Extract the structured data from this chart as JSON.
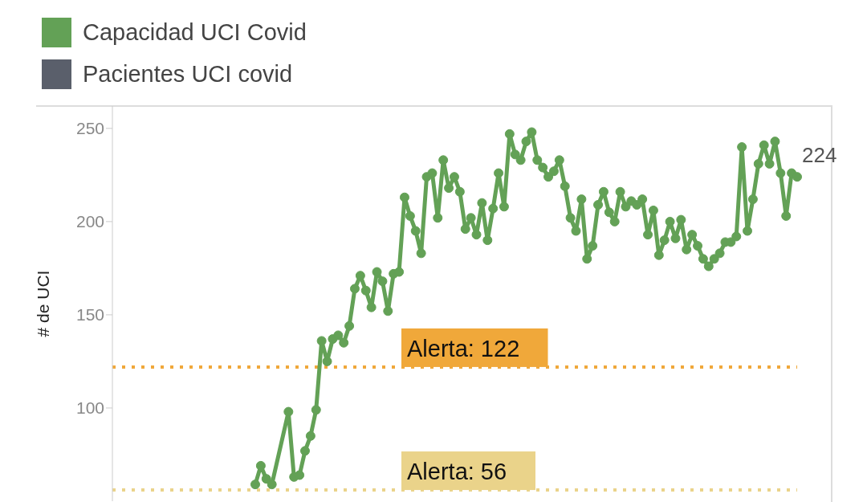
{
  "chart_data": {
    "type": "line",
    "ylabel": "# de UCI",
    "categories": [
      null,
      null,
      null,
      null,
      null,
      null,
      null,
      null,
      null,
      null,
      null,
      null,
      null,
      null,
      null,
      null,
      null,
      null,
      null,
      null,
      null,
      null,
      null,
      null,
      null,
      null,
      null,
      null,
      null,
      null,
      null,
      null,
      null,
      null,
      null,
      null,
      null,
      null,
      null,
      null,
      null,
      null,
      null,
      null,
      null,
      null,
      null,
      null,
      null,
      null,
      null,
      null,
      null,
      null,
      null,
      null,
      null,
      null,
      null,
      null,
      null,
      null,
      null,
      null,
      null,
      null,
      null,
      null,
      null,
      null,
      null,
      null,
      null,
      null,
      null,
      null,
      null,
      null,
      null,
      null,
      null,
      null,
      null,
      null,
      null,
      null,
      null,
      null,
      null,
      null,
      null,
      null,
      null,
      null,
      null,
      null,
      null,
      null,
      null
    ],
    "series": [
      {
        "name": "Capacidad UCI Covid",
        "color": "#63a156",
        "values": [
          59,
          69,
          62,
          59,
          null,
          null,
          98,
          63,
          64,
          77,
          85,
          99,
          136,
          125,
          137,
          139,
          135,
          144,
          164,
          171,
          163,
          154,
          173,
          168,
          152,
          172,
          173,
          213,
          203,
          195,
          183,
          224,
          226,
          202,
          233,
          218,
          224,
          216,
          196,
          202,
          193,
          210,
          190,
          207,
          226,
          208,
          247,
          236,
          233,
          243,
          248,
          233,
          229,
          224,
          227,
          233,
          219,
          202,
          195,
          212,
          180,
          187,
          209,
          216,
          205,
          200,
          216,
          208,
          211,
          209,
          212,
          193,
          206,
          182,
          190,
          200,
          191,
          201,
          185,
          193,
          187,
          180,
          176,
          180,
          183,
          189,
          189,
          192,
          240,
          195,
          212,
          231,
          241,
          231,
          243,
          226,
          203,
          226,
          224
        ],
        "value_labels": [
          null,
          null,
          null,
          null,
          null,
          null,
          null,
          null,
          null,
          null,
          null,
          null,
          null,
          null,
          null,
          null,
          null,
          null,
          null,
          null,
          null,
          null,
          null,
          null,
          null,
          null,
          null,
          null,
          null,
          null,
          null,
          null,
          null,
          null,
          null,
          null,
          null,
          null,
          null,
          null,
          null,
          null,
          null,
          null,
          null,
          null,
          null,
          null,
          null,
          null,
          null,
          null,
          null,
          null,
          null,
          null,
          null,
          null,
          null,
          null,
          null,
          null,
          null,
          null,
          null,
          null,
          null,
          null,
          null,
          null,
          null,
          null,
          null,
          null,
          null,
          null,
          null,
          null,
          null,
          null,
          null,
          null,
          null,
          null,
          null,
          null,
          null,
          null,
          null,
          null,
          null,
          null,
          null,
          null,
          null,
          null,
          null,
          null,
          "224"
        ]
      },
      {
        "name": "Pacientes UCI covid",
        "color": "#5a5f6b",
        "values": [
          null,
          null,
          null,
          null,
          null,
          null,
          null,
          null,
          null,
          null,
          null,
          null,
          null,
          null,
          null,
          null,
          null,
          null,
          null,
          null,
          null,
          null,
          null,
          null,
          null,
          null,
          null,
          null,
          null,
          null,
          null,
          null,
          null,
          null,
          null,
          null,
          null,
          null,
          null,
          null,
          null,
          null,
          null,
          null,
          null,
          null,
          null,
          null,
          null,
          null,
          null,
          null,
          null,
          null,
          null,
          null,
          null,
          null,
          null,
          null,
          null,
          null,
          null,
          null,
          null,
          null,
          null,
          null,
          null,
          null,
          null,
          null,
          null,
          null,
          null,
          null,
          null,
          null,
          null,
          null,
          null,
          null,
          null,
          null,
          null,
          null,
          null,
          null,
          null,
          null,
          null,
          null,
          null,
          null,
          null,
          null,
          null,
          null,
          null
        ]
      }
    ],
    "ylim": [
      50,
      262
    ],
    "yticks": [
      100,
      150,
      200,
      250
    ],
    "ref_lines": [
      {
        "axis": "y",
        "value": 122,
        "label": "Alerta: 122",
        "color": "#f0a83a",
        "line_style": "dotted"
      },
      {
        "axis": "y",
        "value": 56,
        "label": "Alerta: 56",
        "color": "#ead38a",
        "line_style": "dotted"
      }
    ],
    "grid": false,
    "legend": "top left",
    "marker": "circle",
    "line_style": "solid"
  }
}
